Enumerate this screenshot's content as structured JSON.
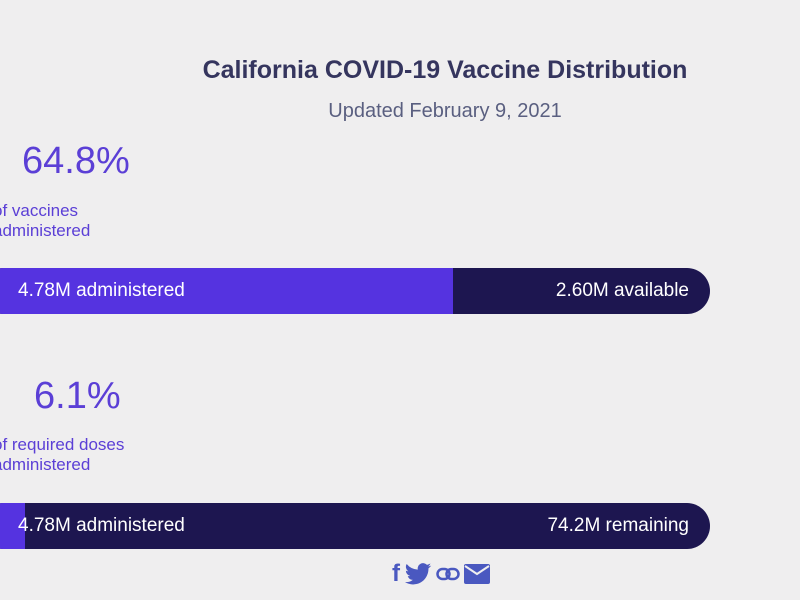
{
  "header": {
    "title": "California COVID-19 Vaccine Distribution",
    "subtitle": "Updated February 9, 2021"
  },
  "colors": {
    "administered": "#5533e0",
    "remaining": "#1d1650",
    "background": "#efeeef"
  },
  "chart_data": [
    {
      "type": "bar",
      "stat": "64.8%",
      "desc_line1": "of vaccines",
      "desc_line2": "administered",
      "fraction": 0.648,
      "left_label": "4.78M administered",
      "right_label": "2.60M available",
      "values": [
        4.78,
        2.6
      ]
    },
    {
      "type": "bar",
      "stat": "6.1%",
      "desc_line1": "of required doses",
      "desc_line2": "administered",
      "fraction": 0.061,
      "left_label": "4.78M administered",
      "right_label": "74.2M remaining",
      "values": [
        4.78,
        74.2
      ]
    }
  ],
  "share": [
    "facebook-icon",
    "twitter-icon",
    "link-icon",
    "email-icon"
  ]
}
